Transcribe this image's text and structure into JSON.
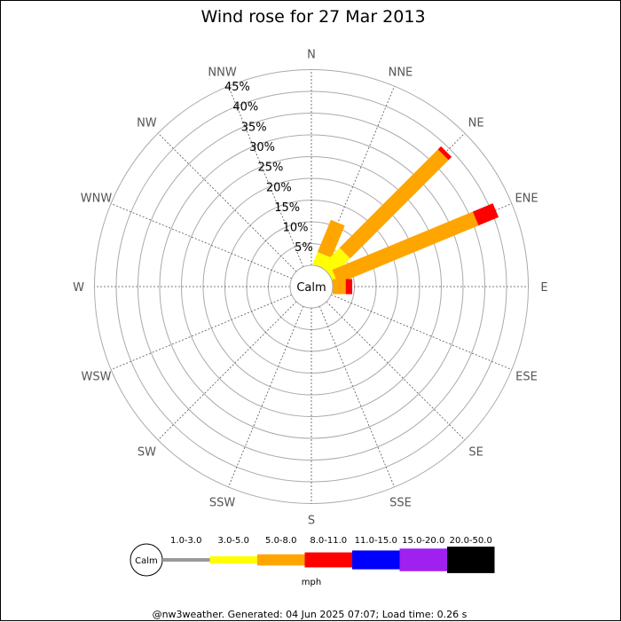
{
  "colors": {
    "background": "#ffffff",
    "ring": "#aaaaaa",
    "spoke": "#555555",
    "calm_text": "#000000"
  },
  "chart_data": {
    "type": "wind-rose",
    "title": "Wind rose for 27 Mar 2013",
    "unit_label": "mph",
    "calm_label": "Calm",
    "directions": [
      "N",
      "NNE",
      "NE",
      "ENE",
      "E",
      "ESE",
      "SE",
      "SSE",
      "S",
      "SSW",
      "SW",
      "WSW",
      "W",
      "WNW",
      "NW",
      "NNW"
    ],
    "rings": [
      5,
      10,
      15,
      20,
      25,
      30,
      35,
      40,
      45
    ],
    "ring_labels": [
      "5%",
      "10%",
      "15%",
      "20%",
      "25%",
      "30%",
      "35%",
      "40%",
      "45%"
    ],
    "speed_bins": [
      {
        "range": "1.0-3.0",
        "color": "#999999"
      },
      {
        "range": "3.0-5.0",
        "color": "#ffff00"
      },
      {
        "range": "5.0-8.0",
        "color": "#ffa500"
      },
      {
        "range": "8.0-11.0",
        "color": "#ff0000"
      },
      {
        "range": "11.0-15.0",
        "color": "#0000ff"
      },
      {
        "range": "15.0-20.0",
        "color": "#a020f0"
      },
      {
        "range": "20.0-50.0",
        "color": "#000000"
      }
    ],
    "series": [
      {
        "direction": "NNE",
        "values": [
          0,
          3,
          8,
          0,
          0,
          0,
          0
        ]
      },
      {
        "direction": "NE",
        "values": [
          0,
          6,
          32,
          1,
          0,
          0,
          0
        ]
      },
      {
        "direction": "ENE",
        "values": [
          0,
          1,
          35,
          5,
          0,
          0,
          0
        ]
      },
      {
        "direction": "E",
        "values": [
          0,
          0,
          3,
          1.5,
          0,
          0,
          0
        ]
      }
    ]
  },
  "footer": "@nw3weather. Generated: 04 Jun 2025 07:07; Load time: 0.26 s"
}
